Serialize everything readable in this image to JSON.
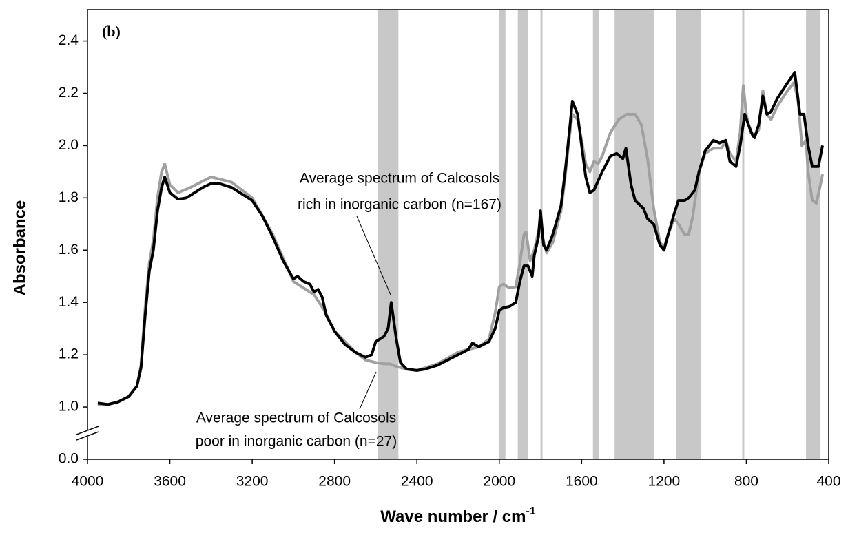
{
  "chart_data": {
    "type": "line",
    "panel_label": "(b)",
    "x_label": {
      "text": "Wave number / cm",
      "superscript": "-1"
    },
    "y_label": "Absorbance",
    "xlim": [
      4000,
      400
    ],
    "xticks": [
      4000,
      3600,
      3200,
      2800,
      2400,
      2000,
      1600,
      1200,
      800,
      400
    ],
    "ylim": [
      0,
      2.52
    ],
    "y_break": [
      0,
      1
    ],
    "yticks": [
      {
        "value": 0,
        "label": "0.0"
      },
      {
        "value": 1,
        "label": "1.0"
      },
      1.2,
      1.4,
      1.6,
      1.8,
      {
        "value": 2,
        "label": "2.0"
      },
      2.2,
      2.4
    ],
    "band_color": "#c8c8c8",
    "bands": [
      [
        2590,
        2490
      ],
      [
        2000,
        1970
      ],
      [
        1910,
        1860
      ],
      [
        1800,
        1790
      ],
      [
        1545,
        1515
      ],
      [
        1440,
        1250
      ],
      [
        1140,
        1020
      ],
      [
        820,
        810
      ],
      [
        510,
        440
      ]
    ],
    "annotations": [
      {
        "lines": [
          "Average spectrum of Calcosols",
          "rich in inorganic carbon (n=167)"
        ]
      },
      {
        "lines": [
          "Average spectrum of Calcosols",
          "poor in inorganic carbon (n=27)"
        ]
      }
    ],
    "series": [
      {
        "color": "#a0a0a0",
        "x": [
          3950,
          3900,
          3850,
          3800,
          3760,
          3740,
          3720,
          3700,
          3680,
          3660,
          3640,
          3625,
          3600,
          3560,
          3500,
          3400,
          3300,
          3200,
          3100,
          3000,
          2900,
          2850,
          2800,
          2700,
          2650,
          2600,
          2560,
          2530,
          2500,
          2450,
          2400,
          2300,
          2200,
          2150,
          2100,
          2050,
          2020,
          2000,
          1980,
          1950,
          1920,
          1900,
          1880,
          1870,
          1850,
          1830,
          1810,
          1800,
          1790,
          1770,
          1740,
          1700,
          1680,
          1660,
          1645,
          1620,
          1600,
          1580,
          1560,
          1540,
          1520,
          1500,
          1460,
          1420,
          1380,
          1340,
          1310,
          1280,
          1250,
          1220,
          1200,
          1180,
          1150,
          1130,
          1100,
          1080,
          1060,
          1030,
          1000,
          960,
          920,
          900,
          880,
          850,
          830,
          815,
          800,
          780,
          760,
          740,
          720,
          700,
          680,
          650,
          600,
          570,
          550,
          530,
          510,
          500,
          480,
          460,
          440,
          430
        ],
        "values": [
          1.01,
          1.01,
          1.02,
          1.04,
          1.08,
          1.16,
          1.38,
          1.55,
          1.64,
          1.8,
          1.9,
          1.93,
          1.85,
          1.82,
          1.84,
          1.88,
          1.86,
          1.8,
          1.66,
          1.48,
          1.43,
          1.37,
          1.29,
          1.21,
          1.18,
          1.17,
          1.165,
          1.165,
          1.155,
          1.145,
          1.14,
          1.165,
          1.21,
          1.22,
          1.23,
          1.26,
          1.36,
          1.46,
          1.47,
          1.455,
          1.46,
          1.55,
          1.66,
          1.67,
          1.56,
          1.6,
          1.67,
          1.7,
          1.65,
          1.59,
          1.63,
          1.75,
          1.88,
          2.03,
          2.12,
          2.1,
          2.02,
          1.93,
          1.9,
          1.94,
          1.93,
          1.96,
          2.05,
          2.1,
          2.12,
          2.12,
          2.08,
          1.95,
          1.76,
          1.63,
          1.61,
          1.66,
          1.72,
          1.7,
          1.66,
          1.66,
          1.73,
          1.9,
          1.97,
          1.99,
          1.99,
          2.02,
          1.97,
          1.94,
          2.05,
          2.23,
          2.12,
          2.05,
          2.04,
          2.06,
          2.21,
          2.12,
          2.1,
          2.15,
          2.21,
          2.24,
          2.18,
          2.0,
          2.02,
          1.9,
          1.79,
          1.78,
          1.85,
          1.89
        ]
      },
      {
        "color": "#000000",
        "x": [
          3950,
          3900,
          3850,
          3800,
          3760,
          3740,
          3720,
          3700,
          3680,
          3660,
          3640,
          3625,
          3600,
          3560,
          3520,
          3480,
          3440,
          3400,
          3360,
          3300,
          3240,
          3200,
          3150,
          3100,
          3050,
          3000,
          2980,
          2950,
          2920,
          2900,
          2880,
          2860,
          2840,
          2800,
          2750,
          2700,
          2650,
          2620,
          2600,
          2560,
          2540,
          2525,
          2500,
          2480,
          2450,
          2400,
          2360,
          2300,
          2250,
          2200,
          2150,
          2130,
          2100,
          2050,
          2020,
          2000,
          1980,
          1950,
          1920,
          1900,
          1880,
          1860,
          1840,
          1830,
          1810,
          1800,
          1785,
          1770,
          1740,
          1700,
          1680,
          1660,
          1645,
          1620,
          1600,
          1580,
          1560,
          1540,
          1500,
          1460,
          1430,
          1400,
          1385,
          1360,
          1340,
          1300,
          1280,
          1250,
          1220,
          1200,
          1180,
          1150,
          1130,
          1100,
          1080,
          1050,
          1030,
          1000,
          960,
          930,
          900,
          880,
          850,
          830,
          808,
          790,
          770,
          760,
          740,
          720,
          700,
          680,
          650,
          600,
          565,
          540,
          520,
          500,
          480,
          450,
          430
        ],
        "values": [
          1.015,
          1.01,
          1.02,
          1.04,
          1.08,
          1.15,
          1.35,
          1.52,
          1.6,
          1.75,
          1.84,
          1.88,
          1.82,
          1.795,
          1.8,
          1.82,
          1.84,
          1.855,
          1.855,
          1.84,
          1.81,
          1.79,
          1.73,
          1.65,
          1.56,
          1.49,
          1.5,
          1.48,
          1.47,
          1.44,
          1.45,
          1.42,
          1.35,
          1.29,
          1.24,
          1.21,
          1.19,
          1.2,
          1.25,
          1.27,
          1.3,
          1.4,
          1.26,
          1.17,
          1.145,
          1.14,
          1.145,
          1.16,
          1.18,
          1.2,
          1.22,
          1.245,
          1.23,
          1.25,
          1.3,
          1.37,
          1.38,
          1.385,
          1.4,
          1.48,
          1.54,
          1.54,
          1.5,
          1.58,
          1.65,
          1.75,
          1.62,
          1.6,
          1.66,
          1.77,
          1.9,
          2.05,
          2.17,
          2.12,
          2.0,
          1.88,
          1.82,
          1.83,
          1.9,
          1.96,
          1.97,
          1.95,
          1.99,
          1.85,
          1.79,
          1.76,
          1.72,
          1.7,
          1.62,
          1.6,
          1.66,
          1.74,
          1.79,
          1.79,
          1.8,
          1.83,
          1.9,
          1.98,
          2.02,
          2.01,
          2.02,
          1.94,
          1.92,
          2.0,
          2.12,
          2.08,
          2.04,
          2.03,
          2.08,
          2.19,
          2.12,
          2.13,
          2.18,
          2.24,
          2.28,
          2.12,
          2.12,
          2.0,
          1.92,
          1.92,
          2.0
        ]
      }
    ]
  }
}
